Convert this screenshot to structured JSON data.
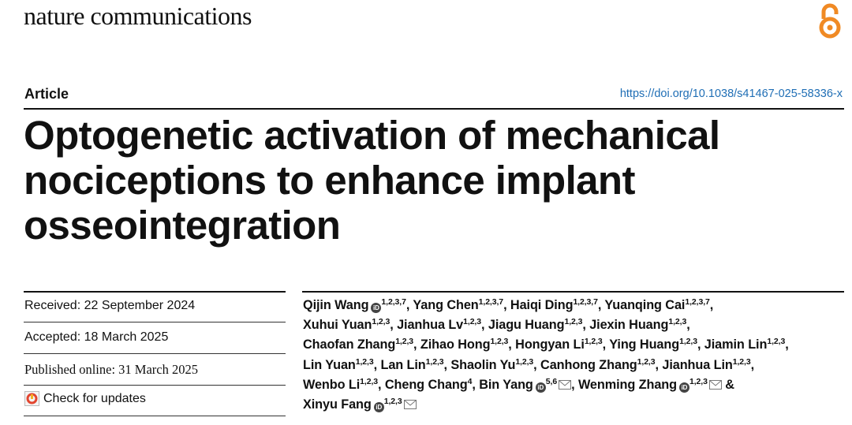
{
  "header": {
    "journal": "nature communications",
    "article_type": "Article",
    "doi": "https://doi.org/10.1038/s41467-025-58336-x"
  },
  "title_lines": [
    "Optogenetic activation of mechanical",
    "nociceptions to enhance implant",
    "osseointegration"
  ],
  "dates": {
    "received": "Received: 22 September 2024",
    "accepted": "Accepted: 18 March 2025",
    "published": "Published online: 31 March 2025",
    "check_updates": "Check for updates"
  },
  "authors": [
    {
      "name": "Qijin Wang",
      "aff": "1,2,3,7",
      "orcid": true
    },
    {
      "name": "Yang Chen",
      "aff": "1,2,3,7"
    },
    {
      "name": "Haiqi Ding",
      "aff": "1,2,3,7"
    },
    {
      "name": "Yuanqing Cai",
      "aff": "1,2,3,7"
    },
    {
      "name": "Xuhui Yuan",
      "aff": "1,2,3"
    },
    {
      "name": "Jianhua Lv",
      "aff": "1,2,3"
    },
    {
      "name": "Jiagu Huang",
      "aff": "1,2,3"
    },
    {
      "name": "Jiexin Huang",
      "aff": "1,2,3"
    },
    {
      "name": "Chaofan Zhang",
      "aff": "1,2,3"
    },
    {
      "name": "Zihao Hong",
      "aff": "1,2,3"
    },
    {
      "name": "Hongyan Li",
      "aff": "1,2,3"
    },
    {
      "name": "Ying Huang",
      "aff": "1,2,3"
    },
    {
      "name": "Jiamin Lin",
      "aff": "1,2,3"
    },
    {
      "name": "Lin Yuan",
      "aff": "1,2,3"
    },
    {
      "name": "Lan Lin",
      "aff": "1,2,3"
    },
    {
      "name": "Shaolin Yu",
      "aff": "1,2,3"
    },
    {
      "name": "Canhong Zhang",
      "aff": "1,2,3"
    },
    {
      "name": "Jianhua Lin",
      "aff": "1,2,3"
    },
    {
      "name": "Wenbo Li",
      "aff": "1,2,3"
    },
    {
      "name": "Cheng Chang",
      "aff": "4"
    },
    {
      "name": "Bin Yang",
      "aff": "5,6",
      "orcid": true,
      "mail": true
    },
    {
      "name": "Wenming Zhang",
      "aff": "1,2,3",
      "orcid": true,
      "mail": true
    },
    {
      "name": "Xinyu Fang",
      "aff": "1,2,3",
      "orcid": true,
      "mail": true
    }
  ],
  "icons": [
    "open-access-icon",
    "orcid-icon",
    "mail-icon",
    "check-updates-icon"
  ],
  "colors": {
    "doi_link": "#1f6eb5",
    "open_access": "#f08a24"
  }
}
